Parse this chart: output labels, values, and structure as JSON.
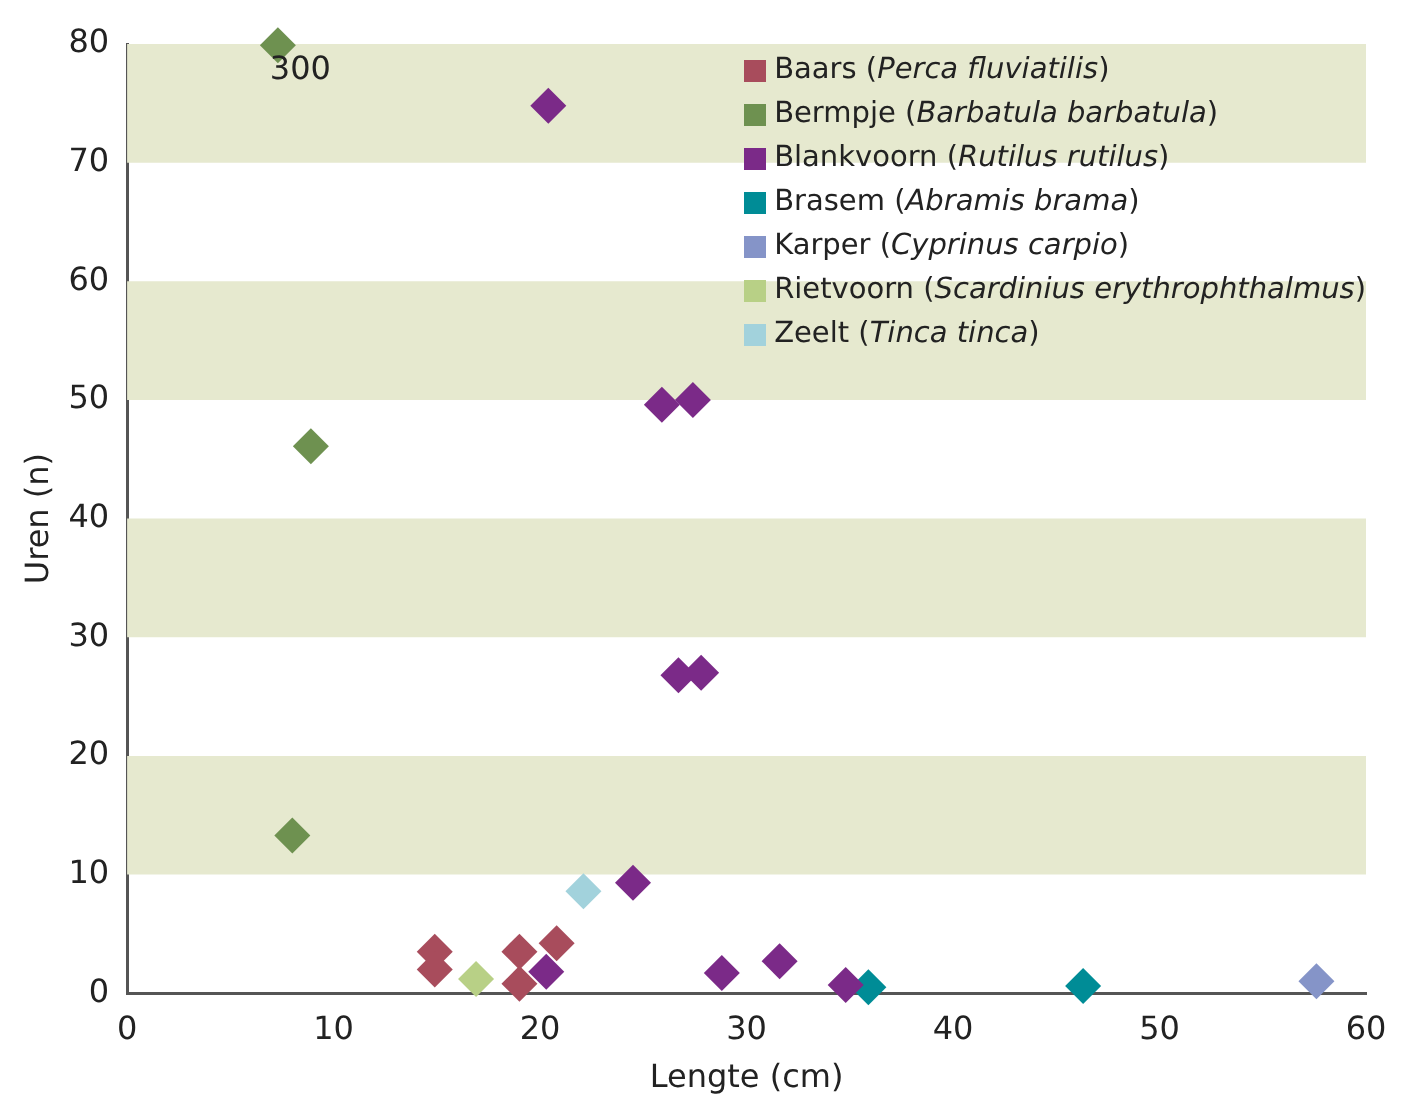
{
  "chart_data": {
    "type": "scatter",
    "xlabel": "Lengte (cm)",
    "ylabel": "Uren (n)",
    "xlim": [
      0,
      60
    ],
    "xticks": [
      0,
      10,
      20,
      30,
      40,
      50,
      60
    ],
    "ylim": [
      0,
      80
    ],
    "yticks": [
      0,
      10,
      20,
      30,
      40,
      50,
      60,
      70,
      80
    ],
    "grid": false,
    "legend": "top right",
    "marker": "diamond",
    "bands": [
      {
        "axis": "y",
        "from": 10,
        "to": 20,
        "color": "#e6e9cf"
      },
      {
        "axis": "y",
        "from": 30,
        "to": 40,
        "color": "#e6e9cf"
      },
      {
        "axis": "y",
        "from": 50,
        "to": 60,
        "color": "#e6e9cf"
      },
      {
        "axis": "y",
        "from": 70,
        "to": 80,
        "color": "#e6e9cf"
      }
    ],
    "annotations": [
      {
        "text": "300",
        "x": 7.3,
        "y": 79.9
      }
    ],
    "series": [
      {
        "name": "Baars (Perca fluviatilis)",
        "color": "#a84c5c",
        "x": [
          14.9,
          14.9,
          19.0,
          19.0,
          20.8
        ],
        "values": [
          3.5,
          2.0,
          3.5,
          0.8,
          4.2
        ]
      },
      {
        "name": "Bermpje (Barbatula barbatula)",
        "color": "#6e9150",
        "x": [
          7.3,
          8.9,
          8.0
        ],
        "values": [
          79.9,
          46.1,
          13.3
        ]
      },
      {
        "name": "Blankvoorn (Rutilus rutilus)",
        "color": "#7b2a88",
        "x": [
          20.4,
          25.9,
          27.4,
          26.7,
          27.8,
          20.3,
          24.5,
          28.8,
          31.6,
          34.8
        ],
        "values": [
          74.8,
          49.6,
          50.0,
          26.8,
          27.0,
          1.8,
          9.3,
          1.7,
          2.7,
          0.7
        ]
      },
      {
        "name": "Brasem (Abramis brama)",
        "color": "#008c96",
        "x": [
          35.9,
          46.3
        ],
        "values": [
          0.5,
          0.6
        ]
      },
      {
        "name": "Karper (Cyprinus carpio)",
        "color": "#8594c8",
        "x": [
          57.6
        ],
        "values": [
          1.0
        ]
      },
      {
        "name": "Rietvoorn (Scardinius erythrophthalmus)",
        "color": "#b8d086",
        "x": [
          16.9
        ],
        "values": [
          1.2
        ]
      },
      {
        "name": "Zeelt (Tinca tinca)",
        "color": "#a2d2dc",
        "x": [
          22.1
        ],
        "values": [
          8.6
        ]
      }
    ]
  }
}
